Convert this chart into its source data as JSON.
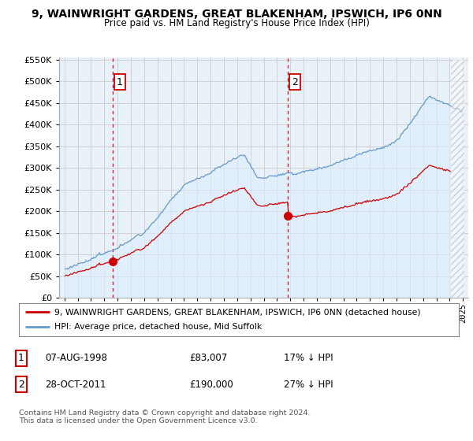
{
  "title": "9, WAINWRIGHT GARDENS, GREAT BLAKENHAM, IPSWICH, IP6 0NN",
  "subtitle": "Price paid vs. HM Land Registry's House Price Index (HPI)",
  "legend_line1": "9, WAINWRIGHT GARDENS, GREAT BLAKENHAM, IPSWICH, IP6 0NN (detached house)",
  "legend_line2": "HPI: Average price, detached house, Mid Suffolk",
  "table_row1": [
    "1",
    "07-AUG-1998",
    "£83,007",
    "17% ↓ HPI"
  ],
  "table_row2": [
    "2",
    "28-OCT-2011",
    "£190,000",
    "27% ↓ HPI"
  ],
  "footer": "Contains HM Land Registry data © Crown copyright and database right 2024.\nThis data is licensed under the Open Government Licence v3.0.",
  "ylim": [
    0,
    550000
  ],
  "yticks": [
    0,
    50000,
    100000,
    150000,
    200000,
    250000,
    300000,
    350000,
    400000,
    450000,
    500000,
    550000
  ],
  "sale1_year": 1998.62,
  "sale1_price": 83007,
  "sale2_year": 2011.83,
  "sale2_price": 190000,
  "sale_color": "#cc0000",
  "hpi_color": "#6699cc",
  "hpi_fill_color": "#ddeeff",
  "vline_color": "#cc0000",
  "grid_color": "#cccccc",
  "background_color": "#ffffff",
  "plot_bg_color": "#e8f0f8"
}
